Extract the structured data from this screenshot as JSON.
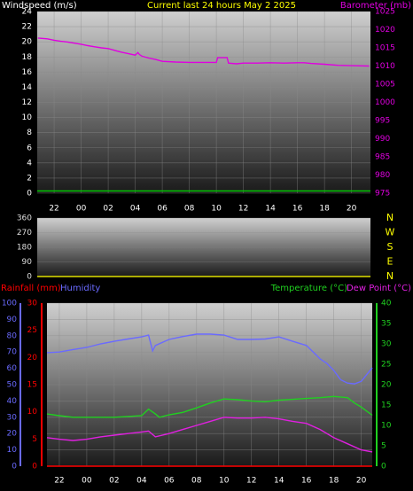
{
  "chart_data": [
    {
      "type": "line",
      "title": "Current last 24 hours May 2 2025",
      "xlim": [
        20.75,
        45.4
      ],
      "xticks": [
        {
          "value": 22,
          "label": "22"
        },
        {
          "value": 24,
          "label": "00"
        },
        {
          "value": 26,
          "label": "02"
        },
        {
          "value": 28,
          "label": "04"
        },
        {
          "value": 30,
          "label": "06"
        },
        {
          "value": 32,
          "label": "08"
        },
        {
          "value": 34,
          "label": "10"
        },
        {
          "value": 36,
          "label": "12"
        },
        {
          "value": 38,
          "label": "14"
        },
        {
          "value": 40,
          "label": "16"
        },
        {
          "value": 42,
          "label": "18"
        },
        {
          "value": 44,
          "label": "20"
        }
      ],
      "ylim": [
        0,
        24
      ],
      "yticks": [
        0,
        2,
        4,
        6,
        8,
        10,
        12,
        14,
        16,
        18,
        20,
        22,
        24
      ],
      "y2lim": [
        975,
        1025
      ],
      "y2ticks": [
        975,
        980,
        985,
        990,
        995,
        1000,
        1005,
        1010,
        1015,
        1020,
        1025
      ],
      "grid": true,
      "series": [
        {
          "name": "Windspeed (m/s)",
          "color": "#00d000",
          "x": [
            20.75,
            45.4
          ],
          "values": [
            0.3,
            0.3
          ]
        },
        {
          "name": "Barometer (mb)",
          "color": "#e000e0",
          "axis": "y2",
          "x": [
            20.8,
            21.5,
            22,
            22.5,
            23,
            23.5,
            24,
            24.5,
            25,
            25.5,
            26,
            26.5,
            27,
            27.5,
            28,
            28.2,
            28.3,
            28.5,
            29,
            29.5,
            30,
            31,
            32,
            33,
            34,
            34.1,
            34.8,
            34.9,
            35.5,
            36,
            37,
            38,
            39,
            40,
            40.5,
            41,
            42,
            43,
            44,
            45.3
          ],
          "values": [
            1017.7,
            1017.5,
            1017.1,
            1016.8,
            1016.6,
            1016.3,
            1016,
            1015.6,
            1015.3,
            1015,
            1014.8,
            1014.3,
            1013.8,
            1013.4,
            1013,
            1013.7,
            1013.2,
            1012.7,
            1012.2,
            1011.8,
            1011.3,
            1011.1,
            1011,
            1011,
            1011,
            1012.3,
            1012.3,
            1010.8,
            1010.6,
            1010.8,
            1010.8,
            1010.9,
            1010.8,
            1010.9,
            1010.9,
            1010.7,
            1010.5,
            1010.2,
            1010.1,
            1010
          ]
        }
      ]
    },
    {
      "type": "line",
      "xlim": [
        20.75,
        45.4
      ],
      "ylim": [
        0,
        360
      ],
      "yticks": [
        0,
        90,
        180,
        270,
        360
      ],
      "y2lim": [
        0,
        360
      ],
      "y2ticks": [
        {
          "value": 360,
          "label": "N"
        },
        {
          "value": 270,
          "label": "W"
        },
        {
          "value": 180,
          "label": "S"
        },
        {
          "value": 90,
          "label": "E"
        },
        {
          "value": 0,
          "label": "N"
        }
      ],
      "grid": true,
      "series": [
        {
          "color": "#e0e000",
          "x": [
            20.75,
            45.4
          ],
          "values": [
            0,
            0
          ]
        }
      ]
    },
    {
      "type": "line",
      "xlim": [
        21.1,
        44.8
      ],
      "xticks": [
        {
          "value": 22,
          "label": "22"
        },
        {
          "value": 24,
          "label": "00"
        },
        {
          "value": 26,
          "label": "02"
        },
        {
          "value": 28,
          "label": "04"
        },
        {
          "value": 30,
          "label": "06"
        },
        {
          "value": 32,
          "label": "08"
        },
        {
          "value": 34,
          "label": "10"
        },
        {
          "value": 36,
          "label": "12"
        },
        {
          "value": 38,
          "label": "14"
        },
        {
          "value": 40,
          "label": "16"
        },
        {
          "value": 42,
          "label": "18"
        },
        {
          "value": 44,
          "label": "20"
        }
      ],
      "ylim": [
        0,
        30
      ],
      "yticks": [
        0,
        5,
        10,
        15,
        20,
        25,
        30
      ],
      "y2lim": [
        0,
        40
      ],
      "y2ticks": [
        0,
        5,
        10,
        15,
        20,
        25,
        30,
        35,
        40
      ],
      "y3lim": [
        0,
        100
      ],
      "y3ticks": [
        0,
        10,
        20,
        30,
        40,
        50,
        60,
        70,
        80,
        90,
        100
      ],
      "grid": true,
      "series": [
        {
          "name": "Rainfall (mm)",
          "color": "#ff0000",
          "x": [
            21.1,
            44.8
          ],
          "values": [
            0,
            0
          ]
        },
        {
          "name": "Humidity",
          "color": "#6a6aff",
          "axis": "y3",
          "x": [
            21.1,
            22,
            23,
            24,
            25,
            26,
            27,
            28,
            28.5,
            28.8,
            29,
            30,
            31,
            32,
            33,
            34,
            35,
            36,
            37,
            38,
            39,
            40,
            40.5,
            41,
            41.5,
            42,
            42.5,
            43,
            43.5,
            44,
            44.8
          ],
          "values": [
            69.6,
            70,
            71.5,
            72.8,
            75,
            76.6,
            78,
            79.3,
            80.4,
            70.7,
            74,
            77.7,
            79.5,
            81,
            81,
            80.4,
            77.7,
            77.7,
            78,
            79.3,
            76.6,
            74,
            70,
            65.8,
            63,
            58.7,
            53,
            51,
            50.5,
            52,
            60.3
          ]
        },
        {
          "name": "Temperature (°C)",
          "color": "#20d020",
          "axis": "y2",
          "x": [
            21.1,
            22,
            23,
            24,
            25,
            26,
            27,
            28,
            28.5,
            29,
            29.3,
            30,
            31,
            32,
            33,
            34,
            35,
            36,
            37,
            38,
            39,
            40,
            41,
            42,
            43,
            43.5,
            44,
            44.8
          ],
          "values": [
            12.8,
            12.4,
            12,
            12,
            12,
            12,
            12.2,
            12.4,
            14,
            12.8,
            12,
            12.6,
            13.2,
            14.3,
            15.5,
            16.5,
            16.3,
            16,
            15.8,
            16.2,
            16.4,
            16.6,
            16.8,
            17.1,
            16.8,
            15.5,
            14.5,
            12.5
          ]
        },
        {
          "name": "Dew Point (°C)",
          "color": "#e020e0",
          "axis": "y2",
          "x": [
            21.1,
            22,
            23,
            24,
            25,
            26,
            27,
            28,
            28.5,
            29,
            30,
            31,
            32,
            33,
            34,
            35,
            36,
            37,
            38,
            39,
            40,
            41,
            42,
            43,
            44,
            44.8
          ],
          "values": [
            7,
            6.6,
            6.3,
            6.6,
            7.2,
            7.6,
            8,
            8.4,
            8.6,
            7.2,
            8,
            9,
            10,
            11,
            12,
            11.8,
            11.8,
            12,
            11.6,
            11,
            10.5,
            9,
            7,
            5.5,
            4,
            3.5
          ]
        }
      ]
    }
  ]
}
